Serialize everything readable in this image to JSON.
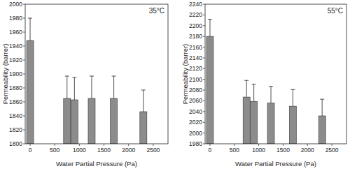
{
  "chart_data": [
    {
      "type": "bar",
      "title": "35°C",
      "x_label": "Water Partial Pressure (Pa)",
      "y_label": "Permeability (barrer)",
      "x": [
        0,
        750,
        900,
        1250,
        1700,
        2300
      ],
      "values": [
        1948,
        1865,
        1863,
        1865,
        1865,
        1846
      ],
      "errors": [
        32,
        32,
        32,
        32,
        32,
        31
      ],
      "color": "#8c8c8c",
      "xlim": [
        -100,
        2800
      ],
      "xticks": [
        0,
        500,
        1000,
        1500,
        2000,
        2500
      ],
      "ylim": [
        1800,
        2000
      ],
      "yticks": [
        1800,
        1820,
        1840,
        1860,
        1880,
        1900,
        1920,
        1940,
        1960,
        1980,
        2000
      ],
      "grid": false
    },
    {
      "type": "bar",
      "title": "55°C",
      "x_label": "Water Partial Pressure (Pa)",
      "y_label": "Permeability (barrer)",
      "x": [
        0,
        750,
        900,
        1250,
        1700,
        2300
      ],
      "values": [
        2180,
        2067,
        2059,
        2056,
        2050,
        2032
      ],
      "errors": [
        32,
        31,
        32,
        31,
        31,
        31
      ],
      "color": "#8c8c8c",
      "xlim": [
        -100,
        2800
      ],
      "xticks": [
        0,
        500,
        1000,
        1500,
        2000,
        2500
      ],
      "ylim": [
        1980,
        2240
      ],
      "yticks": [
        1980,
        2000,
        2020,
        2040,
        2060,
        2080,
        2100,
        2120,
        2140,
        2160,
        2180,
        2200,
        2220,
        2240
      ],
      "grid": false
    }
  ]
}
